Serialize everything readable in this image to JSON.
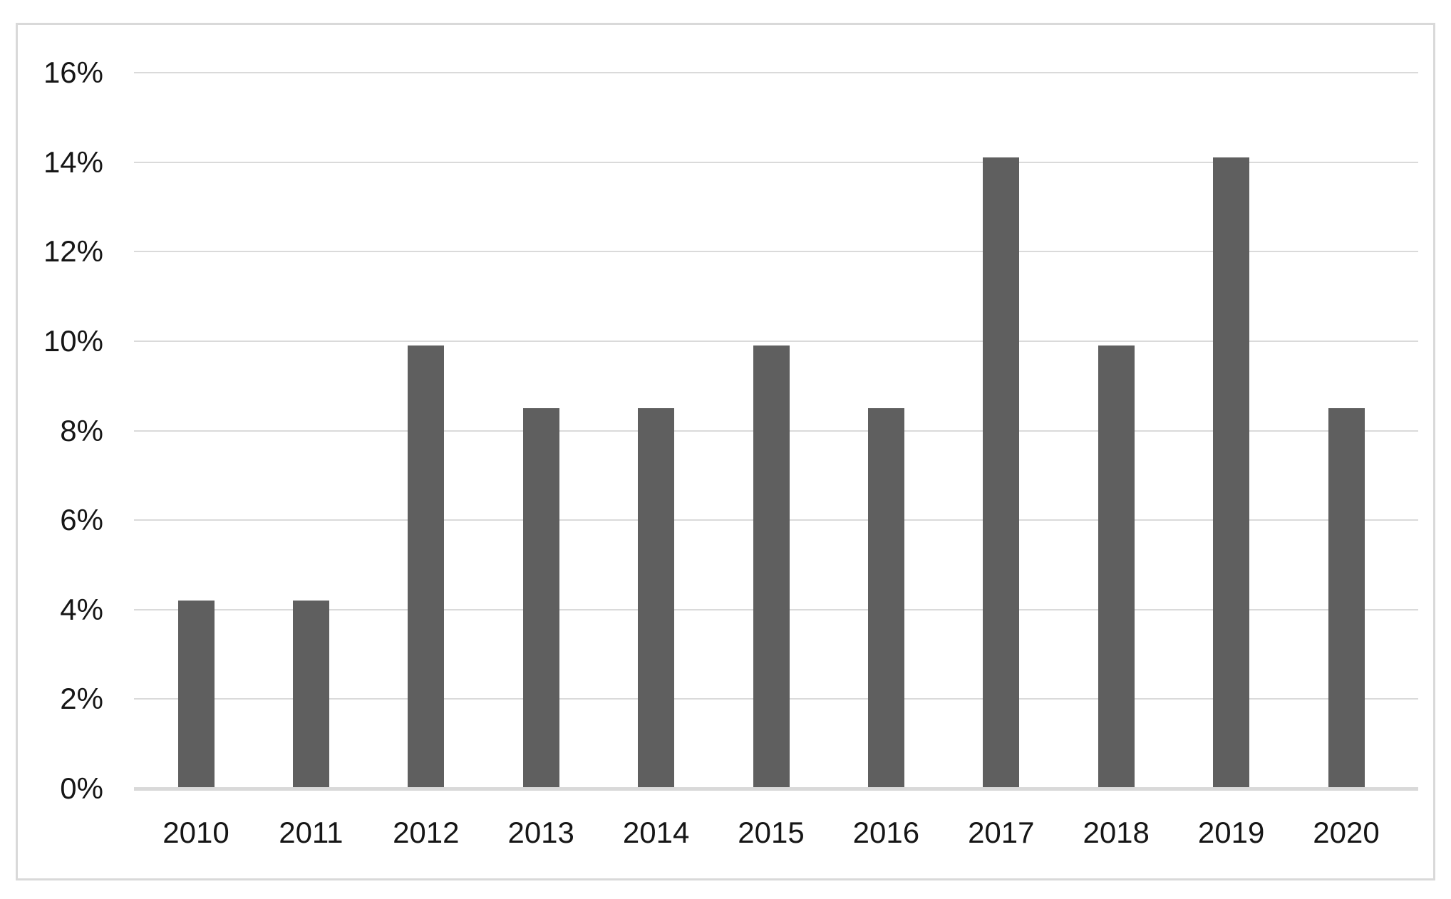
{
  "chart_data": {
    "type": "bar",
    "title": "",
    "xlabel": "",
    "ylabel": "",
    "categories": [
      "2010",
      "2011",
      "2012",
      "2013",
      "2014",
      "2015",
      "2016",
      "2017",
      "2018",
      "2019",
      "2020"
    ],
    "values": [
      4.2,
      4.2,
      9.9,
      8.5,
      8.5,
      9.9,
      8.5,
      14.1,
      9.9,
      14.1,
      8.5
    ],
    "ylim": [
      0,
      16
    ],
    "y_ticks": [
      0,
      2,
      4,
      6,
      8,
      10,
      12,
      14,
      16
    ],
    "y_tick_labels": [
      "0%",
      "2%",
      "4%",
      "6%",
      "8%",
      "10%",
      "12%",
      "14%",
      "16%"
    ],
    "grid": "horizontal-only",
    "legend_position": "none",
    "colors": {
      "bar": "#5f5f5f",
      "gridline": "#dadada",
      "axis_line": "#d9d9d9",
      "frame_border": "#d9d9d9",
      "background": "#ffffff",
      "tick_text": "#161616"
    }
  }
}
